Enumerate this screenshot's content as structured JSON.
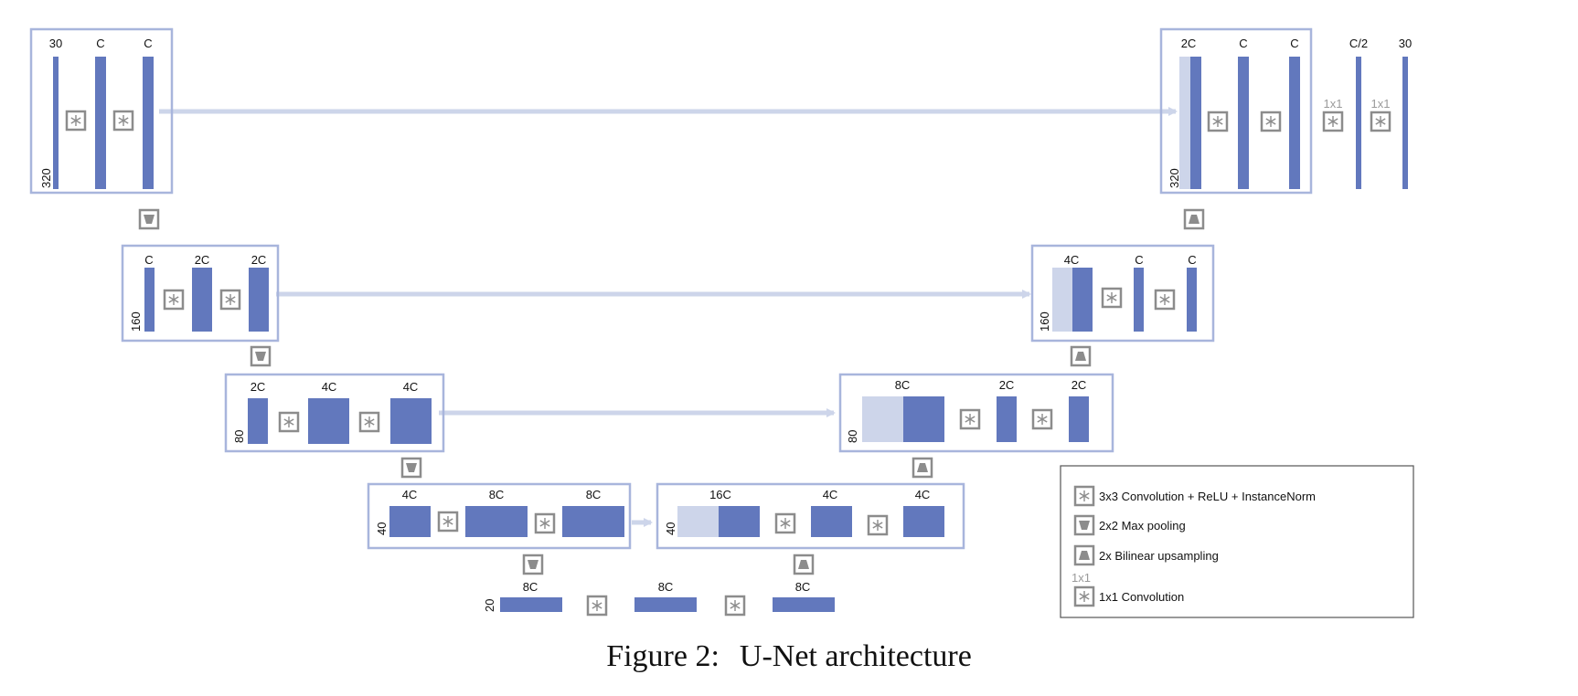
{
  "encoder": {
    "level1": {
      "size": "320",
      "channels": [
        "30",
        "C",
        "C"
      ]
    },
    "level2": {
      "size": "160",
      "channels": [
        "C",
        "2C",
        "2C"
      ]
    },
    "level3": {
      "size": "80",
      "channels": [
        "2C",
        "4C",
        "4C"
      ]
    },
    "level4": {
      "size": "40",
      "channels": [
        "4C",
        "8C",
        "8C"
      ]
    }
  },
  "bottleneck": {
    "size": "20",
    "channels": [
      "8C",
      "8C",
      "8C"
    ]
  },
  "decoder": {
    "level4": {
      "size": "40",
      "channels": [
        "16C",
        "4C",
        "4C"
      ]
    },
    "level3": {
      "size": "80",
      "channels": [
        "8C",
        "2C",
        "2C"
      ]
    },
    "level2": {
      "size": "160",
      "channels": [
        "4C",
        "C",
        "C"
      ]
    },
    "level1": {
      "size": "320",
      "channels": [
        "2C",
        "C",
        "C"
      ]
    }
  },
  "output": {
    "channels": [
      "C/2",
      "30"
    ],
    "conv_labels": [
      "1x1",
      "1x1"
    ]
  },
  "legend": {
    "conv3x3": "3x3 Convolution + ReLU + InstanceNorm",
    "maxpool": "2x2 Max pooling",
    "upsample": "2x Bilinear  upsampling",
    "conv1x1_tag": "1x1",
    "conv1x1": "1x1 Convolution"
  },
  "caption": {
    "number": "Figure 2:",
    "title": "U-Net architecture"
  },
  "colors": {
    "block": "#6278bd",
    "skip": "#cdd5ea",
    "frame": "#a8b5dc",
    "icon": "#8c8c8c",
    "text": "#111111"
  }
}
